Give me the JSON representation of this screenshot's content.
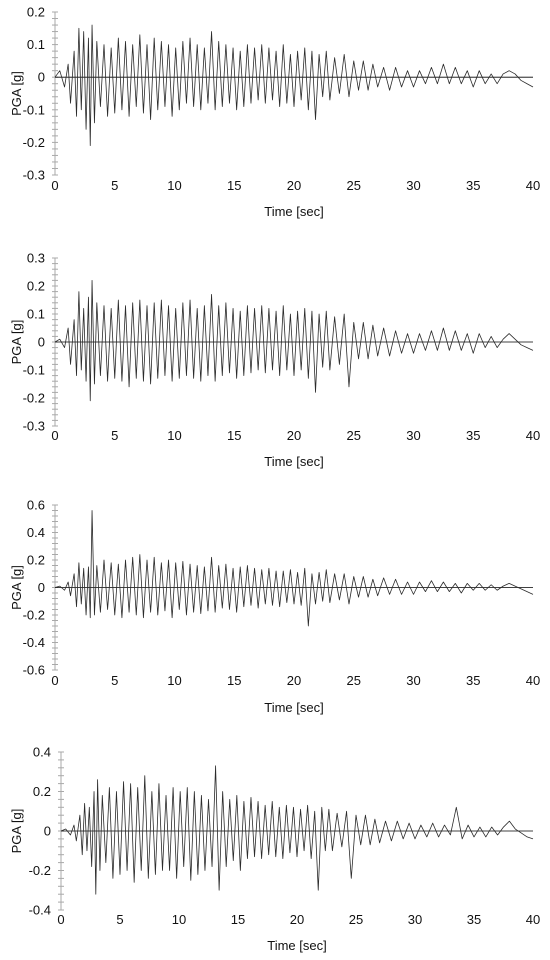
{
  "colors": {
    "series": "#2b2b2b",
    "axis": "#000000",
    "ticks": "#a9a9a9"
  },
  "chart_data": [
    {
      "type": "line",
      "title": "",
      "xlabel": "Time [sec]",
      "ylabel": "PGA [g]",
      "xlim": [
        0,
        40
      ],
      "ylim": [
        -0.3,
        0.2
      ],
      "xticks": [
        0,
        5,
        10,
        15,
        20,
        25,
        30,
        35,
        40
      ],
      "yticks": [
        -0.3,
        -0.2,
        -0.1,
        0,
        0.1,
        0.2
      ],
      "grid": false,
      "series": [
        {
          "x": [
            0,
            0.4,
            0.8,
            1.1,
            1.3,
            1.6,
            1.8,
            2.0,
            2.2,
            2.4,
            2.6,
            2.8,
            2.95,
            3.1,
            3.3,
            3.5,
            3.8,
            4.1,
            4.4,
            4.7,
            5.0,
            5.3,
            5.6,
            5.9,
            6.2,
            6.5,
            6.8,
            7.1,
            7.4,
            7.7,
            8.0,
            8.3,
            8.6,
            8.9,
            9.2,
            9.5,
            9.8,
            10.1,
            10.4,
            10.7,
            11.0,
            11.3,
            11.6,
            11.9,
            12.2,
            12.5,
            12.8,
            13.1,
            13.4,
            13.7,
            14.0,
            14.3,
            14.6,
            14.9,
            15.2,
            15.5,
            15.8,
            16.1,
            16.4,
            16.7,
            17.0,
            17.3,
            17.6,
            17.9,
            18.2,
            18.5,
            18.8,
            19.1,
            19.4,
            19.7,
            20.0,
            20.3,
            20.6,
            20.9,
            21.2,
            21.5,
            21.8,
            22.1,
            22.4,
            22.7,
            23.0,
            23.4,
            23.8,
            24.2,
            24.6,
            25.0,
            25.4,
            25.8,
            26.2,
            26.6,
            27.0,
            27.5,
            28.0,
            28.5,
            29.0,
            29.5,
            30.0,
            30.5,
            31.0,
            31.5,
            32.0,
            32.5,
            33.0,
            33.5,
            34.0,
            34.5,
            35.0,
            35.5,
            36.0,
            36.5,
            37.0,
            37.5,
            38.0,
            38.5,
            39.0,
            39.5,
            40.0
          ],
          "y": [
            0,
            0.02,
            -0.03,
            0.04,
            -0.08,
            0.08,
            -0.12,
            0.15,
            -0.1,
            0.14,
            -0.16,
            0.12,
            -0.21,
            0.16,
            -0.14,
            0.11,
            -0.09,
            0.1,
            -0.12,
            0.09,
            -0.11,
            0.12,
            -0.1,
            0.11,
            -0.12,
            0.1,
            -0.09,
            0.13,
            -0.11,
            0.1,
            -0.13,
            0.12,
            -0.1,
            0.11,
            -0.09,
            0.1,
            -0.12,
            0.09,
            -0.1,
            0.11,
            -0.08,
            0.12,
            -0.09,
            0.1,
            -0.1,
            0.09,
            -0.08,
            0.14,
            -0.1,
            0.11,
            -0.09,
            0.1,
            -0.08,
            0.09,
            -0.1,
            0.08,
            -0.09,
            0.1,
            -0.08,
            0.09,
            -0.07,
            0.1,
            -0.08,
            0.09,
            -0.07,
            0.08,
            -0.09,
            0.1,
            -0.08,
            0.07,
            -0.09,
            0.08,
            -0.07,
            0.09,
            -0.1,
            0.08,
            -0.13,
            0.07,
            -0.06,
            0.08,
            -0.07,
            0.06,
            -0.05,
            0.07,
            -0.06,
            0.05,
            -0.04,
            0.05,
            -0.04,
            0.04,
            -0.03,
            0.03,
            -0.04,
            0.03,
            -0.03,
            0.02,
            -0.03,
            0.02,
            -0.02,
            0.03,
            -0.02,
            0.04,
            -0.02,
            0.03,
            -0.02,
            0.02,
            -0.03,
            0.02,
            -0.02,
            0.01,
            -0.02,
            0.01,
            0.02,
            0.01,
            -0.01,
            -0.02,
            -0.03
          ]
        }
      ]
    },
    {
      "type": "line",
      "title": "",
      "xlabel": "Time [sec]",
      "ylabel": "PGA [g]",
      "xlim": [
        0,
        40
      ],
      "ylim": [
        -0.3,
        0.3
      ],
      "xticks": [
        0,
        5,
        10,
        15,
        20,
        25,
        30,
        35,
        40
      ],
      "yticks": [
        -0.3,
        -0.2,
        -0.1,
        0,
        0.1,
        0.2,
        0.3
      ],
      "grid": false,
      "series": [
        {
          "x": [
            0,
            0.4,
            0.8,
            1.1,
            1.3,
            1.6,
            1.8,
            2.0,
            2.2,
            2.4,
            2.6,
            2.8,
            2.95,
            3.1,
            3.3,
            3.5,
            3.8,
            4.1,
            4.4,
            4.7,
            5.0,
            5.3,
            5.6,
            5.9,
            6.2,
            6.5,
            6.8,
            7.1,
            7.4,
            7.7,
            8.0,
            8.3,
            8.6,
            8.9,
            9.2,
            9.5,
            9.8,
            10.1,
            10.4,
            10.7,
            11.0,
            11.3,
            11.6,
            11.9,
            12.2,
            12.5,
            12.8,
            13.1,
            13.4,
            13.7,
            14.0,
            14.3,
            14.6,
            14.9,
            15.2,
            15.5,
            15.8,
            16.1,
            16.4,
            16.7,
            17.0,
            17.3,
            17.6,
            17.9,
            18.2,
            18.5,
            18.8,
            19.1,
            19.4,
            19.7,
            20.0,
            20.3,
            20.6,
            20.9,
            21.2,
            21.5,
            21.8,
            22.1,
            22.4,
            22.7,
            23.0,
            23.4,
            23.8,
            24.2,
            24.6,
            25.0,
            25.4,
            25.8,
            26.2,
            26.6,
            27.0,
            27.5,
            28.0,
            28.5,
            29.0,
            29.5,
            30.0,
            30.5,
            31.0,
            31.5,
            32.0,
            32.5,
            33.0,
            33.5,
            34.0,
            34.5,
            35.0,
            35.5,
            36.0,
            36.5,
            37.0,
            37.5,
            38.0,
            38.5,
            39.0,
            39.5,
            40.0
          ],
          "y": [
            0,
            0.01,
            -0.02,
            0.05,
            -0.08,
            0.08,
            -0.12,
            0.18,
            -0.1,
            0.12,
            -0.14,
            0.16,
            -0.21,
            0.22,
            -0.15,
            0.14,
            -0.12,
            0.13,
            -0.14,
            0.12,
            -0.13,
            0.15,
            -0.14,
            0.13,
            -0.16,
            0.14,
            -0.13,
            0.15,
            -0.14,
            0.13,
            -0.15,
            0.14,
            -0.13,
            0.15,
            -0.12,
            0.13,
            -0.14,
            0.12,
            -0.13,
            0.14,
            -0.12,
            0.15,
            -0.13,
            0.12,
            -0.14,
            0.13,
            -0.12,
            0.17,
            -0.14,
            0.13,
            -0.12,
            0.14,
            -0.11,
            0.12,
            -0.13,
            0.11,
            -0.12,
            0.13,
            -0.11,
            0.12,
            -0.1,
            0.13,
            -0.11,
            0.12,
            -0.1,
            0.11,
            -0.12,
            0.13,
            -0.1,
            0.1,
            -0.12,
            0.11,
            -0.1,
            0.12,
            -0.13,
            0.11,
            -0.18,
            0.1,
            -0.09,
            0.11,
            -0.1,
            0.09,
            -0.08,
            0.1,
            -0.16,
            0.07,
            -0.06,
            0.07,
            -0.06,
            0.06,
            -0.05,
            0.05,
            -0.05,
            0.04,
            -0.04,
            0.03,
            -0.04,
            0.03,
            -0.03,
            0.04,
            -0.03,
            0.05,
            -0.03,
            0.04,
            -0.03,
            0.03,
            -0.04,
            0.03,
            -0.02,
            0.02,
            -0.02,
            0.01,
            0.03,
            0.01,
            -0.01,
            -0.02,
            -0.03
          ]
        }
      ]
    },
    {
      "type": "line",
      "title": "",
      "xlabel": "Time [sec]",
      "ylabel": "PGA [g]",
      "xlim": [
        0,
        40
      ],
      "ylim": [
        -0.6,
        0.6
      ],
      "xticks": [
        0,
        5,
        10,
        15,
        20,
        25,
        30,
        35,
        40
      ],
      "yticks": [
        -0.6,
        -0.4,
        -0.2,
        0,
        0.2,
        0.4,
        0.6
      ],
      "grid": false,
      "series": [
        {
          "x": [
            0,
            0.4,
            0.8,
            1.1,
            1.3,
            1.6,
            1.8,
            2.0,
            2.2,
            2.4,
            2.6,
            2.8,
            2.95,
            3.1,
            3.3,
            3.5,
            3.8,
            4.1,
            4.4,
            4.7,
            5.0,
            5.3,
            5.6,
            5.9,
            6.2,
            6.5,
            6.8,
            7.1,
            7.4,
            7.7,
            8.0,
            8.3,
            8.6,
            8.9,
            9.2,
            9.5,
            9.8,
            10.1,
            10.4,
            10.7,
            11.0,
            11.3,
            11.6,
            11.9,
            12.2,
            12.5,
            12.8,
            13.1,
            13.4,
            13.7,
            14.0,
            14.3,
            14.6,
            14.9,
            15.2,
            15.5,
            15.8,
            16.1,
            16.4,
            16.7,
            17.0,
            17.3,
            17.6,
            17.9,
            18.2,
            18.5,
            18.8,
            19.1,
            19.4,
            19.7,
            20.0,
            20.3,
            20.6,
            20.9,
            21.2,
            21.5,
            21.8,
            22.1,
            22.4,
            22.7,
            23.0,
            23.4,
            23.8,
            24.2,
            24.6,
            25.0,
            25.4,
            25.8,
            26.2,
            26.6,
            27.0,
            27.5,
            28.0,
            28.5,
            29.0,
            29.5,
            30.0,
            30.5,
            31.0,
            31.5,
            32.0,
            32.5,
            33.0,
            33.5,
            34.0,
            34.5,
            35.0,
            35.5,
            36.0,
            36.5,
            37.0,
            37.5,
            38.0,
            38.5,
            39.0,
            39.5,
            40.0
          ],
          "y": [
            0,
            0.01,
            -0.02,
            0.04,
            -0.06,
            0.1,
            -0.14,
            0.18,
            -0.12,
            0.14,
            -0.2,
            0.15,
            -0.22,
            0.56,
            -0.2,
            0.16,
            -0.18,
            0.2,
            -0.16,
            0.18,
            -0.2,
            0.17,
            -0.22,
            0.2,
            -0.18,
            0.22,
            -0.2,
            0.24,
            -0.22,
            0.2,
            -0.18,
            0.22,
            -0.2,
            0.18,
            -0.17,
            0.2,
            -0.22,
            0.18,
            -0.16,
            0.19,
            -0.2,
            0.17,
            -0.18,
            0.16,
            -0.19,
            0.15,
            -0.17,
            0.22,
            -0.18,
            0.16,
            -0.15,
            0.17,
            -0.16,
            0.14,
            -0.18,
            0.15,
            -0.14,
            0.16,
            -0.13,
            0.14,
            -0.15,
            0.13,
            -0.12,
            0.14,
            -0.13,
            0.12,
            -0.14,
            0.12,
            -0.11,
            0.13,
            -0.12,
            0.11,
            -0.13,
            0.14,
            -0.28,
            0.1,
            -0.12,
            0.11,
            -0.1,
            0.13,
            -0.11,
            0.1,
            -0.09,
            0.1,
            -0.12,
            0.08,
            -0.07,
            0.08,
            -0.07,
            0.06,
            -0.06,
            0.07,
            -0.05,
            0.06,
            -0.05,
            0.04,
            -0.05,
            0.04,
            -0.03,
            0.05,
            -0.03,
            0.04,
            -0.03,
            0.03,
            -0.04,
            0.03,
            -0.02,
            0.03,
            -0.02,
            0.02,
            -0.02,
            0.01,
            0.03,
            0.01,
            -0.01,
            -0.03,
            -0.05
          ]
        }
      ]
    },
    {
      "type": "line",
      "title": "",
      "xlabel": "Time [sec]",
      "ylabel": "PGA [g]",
      "xlim": [
        0,
        40
      ],
      "ylim": [
        -0.4,
        0.4
      ],
      "xticks": [
        0,
        5,
        10,
        15,
        20,
        25,
        30,
        35,
        40
      ],
      "yticks": [
        -0.4,
        -0.2,
        0,
        0.2,
        0.4
      ],
      "grid": false,
      "series": [
        {
          "x": [
            0,
            0.4,
            0.8,
            1.1,
            1.3,
            1.6,
            1.8,
            2.0,
            2.2,
            2.4,
            2.6,
            2.8,
            2.95,
            3.1,
            3.3,
            3.5,
            3.8,
            4.1,
            4.4,
            4.7,
            5.0,
            5.3,
            5.6,
            5.9,
            6.2,
            6.5,
            6.8,
            7.1,
            7.4,
            7.7,
            8.0,
            8.3,
            8.6,
            8.9,
            9.2,
            9.5,
            9.8,
            10.1,
            10.4,
            10.7,
            11.0,
            11.3,
            11.6,
            11.9,
            12.2,
            12.5,
            12.8,
            13.1,
            13.4,
            13.7,
            14.0,
            14.3,
            14.6,
            14.9,
            15.2,
            15.5,
            15.8,
            16.1,
            16.4,
            16.7,
            17.0,
            17.3,
            17.6,
            17.9,
            18.2,
            18.5,
            18.8,
            19.1,
            19.4,
            19.7,
            20.0,
            20.3,
            20.6,
            20.9,
            21.2,
            21.5,
            21.8,
            22.1,
            22.4,
            22.7,
            23.0,
            23.4,
            23.8,
            24.2,
            24.6,
            25.0,
            25.4,
            25.8,
            26.2,
            26.6,
            27.0,
            27.5,
            28.0,
            28.5,
            29.0,
            29.5,
            30.0,
            30.5,
            31.0,
            31.5,
            32.0,
            32.5,
            33.0,
            33.5,
            34.0,
            34.5,
            35.0,
            35.5,
            36.0,
            36.5,
            37.0,
            37.5,
            38.0,
            38.5,
            39.0,
            39.5,
            40.0
          ],
          "y": [
            0,
            0.01,
            -0.02,
            0.03,
            -0.05,
            0.08,
            -0.12,
            0.14,
            -0.1,
            0.12,
            -0.18,
            0.2,
            -0.32,
            0.26,
            -0.2,
            0.18,
            -0.16,
            0.22,
            -0.24,
            0.2,
            -0.22,
            0.25,
            -0.2,
            0.24,
            -0.26,
            0.22,
            -0.2,
            0.28,
            -0.24,
            0.2,
            -0.22,
            0.24,
            -0.2,
            0.18,
            -0.2,
            0.22,
            -0.24,
            0.2,
            -0.18,
            0.22,
            -0.25,
            0.2,
            -0.22,
            0.18,
            -0.2,
            0.16,
            -0.18,
            0.33,
            -0.3,
            0.2,
            -0.18,
            0.16,
            -0.15,
            0.18,
            -0.2,
            0.15,
            -0.14,
            0.17,
            -0.13,
            0.15,
            -0.14,
            0.13,
            -0.12,
            0.15,
            -0.13,
            0.12,
            -0.14,
            0.13,
            -0.11,
            0.12,
            -0.13,
            0.11,
            -0.1,
            0.13,
            -0.14,
            0.1,
            -0.3,
            0.12,
            -0.1,
            0.11,
            -0.1,
            0.09,
            -0.08,
            0.1,
            -0.24,
            0.08,
            -0.07,
            0.08,
            -0.07,
            0.06,
            -0.06,
            0.05,
            -0.05,
            0.05,
            -0.04,
            0.04,
            -0.04,
            0.03,
            -0.03,
            0.04,
            -0.03,
            0.03,
            -0.02,
            0.12,
            -0.04,
            0.03,
            -0.03,
            0.02,
            -0.03,
            0.02,
            -0.02,
            0.02,
            0.05,
            0.01,
            -0.01,
            -0.03,
            -0.04
          ]
        }
      ]
    }
  ]
}
